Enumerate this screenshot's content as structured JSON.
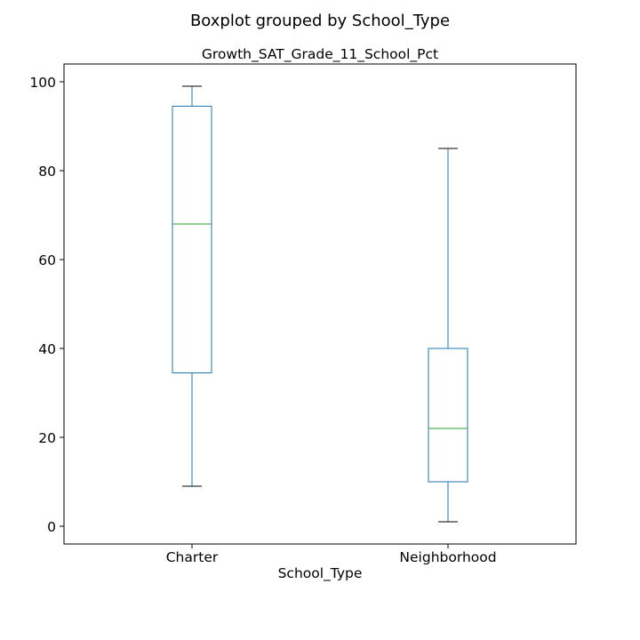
{
  "chart_data": {
    "type": "boxplot",
    "suptitle": "Boxplot grouped by School_Type",
    "title": "Growth_SAT_Grade_11_School_Pct",
    "xlabel": "School_Type",
    "ylabel": "",
    "ylim": [
      -4,
      104
    ],
    "yticks": [
      0,
      20,
      40,
      60,
      80,
      100
    ],
    "grid": false,
    "categories": [
      "Charter",
      "Neighborhood"
    ],
    "boxes": [
      {
        "category": "Charter",
        "whisker_low": 9,
        "q1": 34.5,
        "median": 68,
        "q3": 94.5,
        "whisker_high": 99
      },
      {
        "category": "Neighborhood",
        "whisker_low": 1,
        "q1": 10,
        "median": 22,
        "q3": 40,
        "whisker_high": 85
      }
    ],
    "colors": {
      "box": "#1f77b4",
      "median": "#2ca02c",
      "axis": "#000000"
    }
  }
}
